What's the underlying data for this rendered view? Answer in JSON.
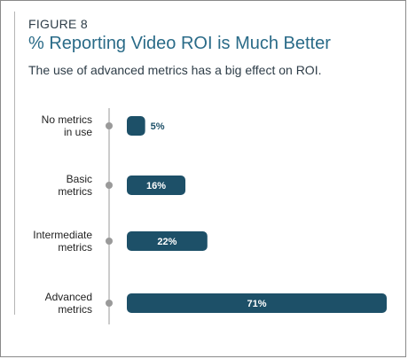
{
  "figure": "FIGURE 8",
  "title": "% Reporting Video ROI is Much Better",
  "subtitle": "The use of advanced metrics has a big effect on ROI.",
  "colors": {
    "bar": "#1d5068",
    "inside_label": "#ffffff",
    "outside_label": "#1d5068",
    "axis": "#9a9a9a",
    "title": "#2a6b88"
  },
  "chart_data": {
    "type": "bar",
    "orientation": "horizontal",
    "categories": [
      [
        "No metrics",
        "in use"
      ],
      [
        "Basic",
        "metrics"
      ],
      [
        "Intermediate",
        "metrics"
      ],
      [
        "Advanced",
        "metrics"
      ]
    ],
    "values": [
      5,
      16,
      22,
      71
    ],
    "value_labels": [
      "5%",
      "16%",
      "22%",
      "71%"
    ],
    "xlim": [
      0,
      71
    ],
    "grid": false
  }
}
